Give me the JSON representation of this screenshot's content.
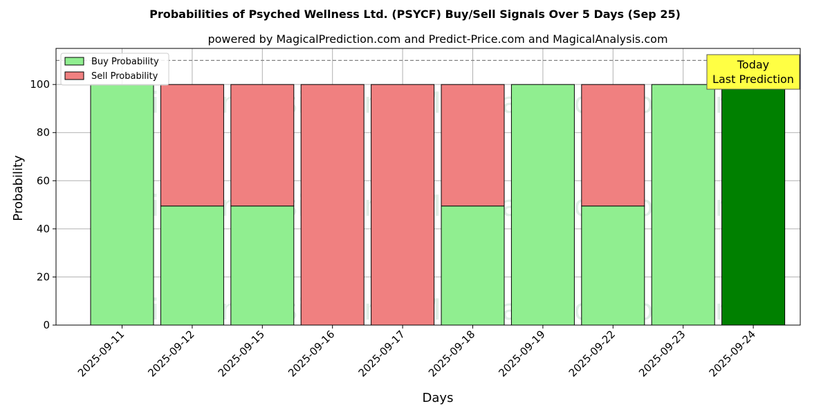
{
  "title": "Probabilities of Psyched Wellness Ltd. (PSYCF) Buy/Sell Signals Over 5 Days (Sep 25)",
  "subtitle": "powered by MagicalPrediction.com and Predict-Price.com and MagicalAnalysis.com",
  "watermarks": [
    "MagicalAnalysis.com",
    "MagicalPrediction.com"
  ],
  "annotation": {
    "line1": "Today",
    "line2": "Last Prediction"
  },
  "colors": {
    "buy": "#90ee90",
    "sell": "#f08080",
    "last_buy": "#008000",
    "annotation_bg": "#ffff44",
    "grid": "#b0b0b0"
  },
  "chart_data": {
    "type": "bar",
    "stacked": true,
    "xlabel": "Days",
    "ylabel": "Probability",
    "ylim": [
      0,
      115
    ],
    "yticks": [
      0,
      20,
      40,
      60,
      80,
      100
    ],
    "reference_line": 110,
    "grid": true,
    "legend_position": "top-left",
    "categories": [
      "2025-09-11",
      "2025-09-12",
      "2025-09-15",
      "2025-09-16",
      "2025-09-17",
      "2025-09-18",
      "2025-09-19",
      "2025-09-22",
      "2025-09-23",
      "2025-09-24"
    ],
    "series": [
      {
        "name": "Buy Probability",
        "values": [
          100,
          49.5,
          49.5,
          0,
          0,
          49.5,
          100,
          49.5,
          100,
          100
        ]
      },
      {
        "name": "Sell Probability",
        "values": [
          0,
          50.5,
          50.5,
          100,
          100,
          50.5,
          0,
          50.5,
          0,
          0
        ]
      }
    ]
  }
}
